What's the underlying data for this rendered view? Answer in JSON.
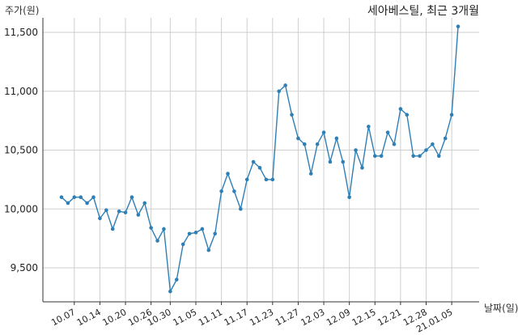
{
  "chart_data": {
    "type": "line",
    "title": "세아베스틸, 최근 3개월",
    "ylabel": "주가(원)",
    "xlabel": "날짜(일)",
    "ylim": [
      9200,
      11750
    ],
    "yticks": [
      9500,
      10000,
      10500,
      11000,
      11500
    ],
    "ytick_labels": [
      "9,500",
      "10,000",
      "10,500",
      "11,000",
      "11,500"
    ],
    "xtick_labels": [
      "10.07",
      "10.14",
      "10.20",
      "10.26",
      "10.30",
      "11.05",
      "11.11",
      "11.17",
      "11.23",
      "11.27",
      "12.03",
      "12.09",
      "12.15",
      "12.21",
      "12.28",
      "21.01.05"
    ],
    "xtick_indices": [
      2,
      6,
      10,
      14,
      17,
      21,
      25,
      29,
      33,
      37,
      41,
      45,
      49,
      53,
      57,
      61
    ],
    "grid": true,
    "series": [
      {
        "color": "#2e7fb5",
        "values": [
          10100,
          10050,
          10100,
          10100,
          10050,
          10100,
          9920,
          9990,
          9830,
          9980,
          9970,
          10100,
          9950,
          10050,
          9840,
          9730,
          9830,
          9300,
          9400,
          9700,
          9790,
          9800,
          9830,
          9650,
          9790,
          10150,
          10300,
          10150,
          10000,
          10250,
          10400,
          10350,
          10250,
          10250,
          11000,
          11050,
          10800,
          10600,
          10550,
          10300,
          10550,
          10650,
          10400,
          10600,
          10400,
          10100,
          10500,
          10350,
          10700,
          10450,
          10450,
          10650,
          10550,
          10850,
          10800,
          10450,
          10450,
          10500,
          10550,
          10450,
          10600,
          10800,
          11550
        ]
      }
    ]
  }
}
